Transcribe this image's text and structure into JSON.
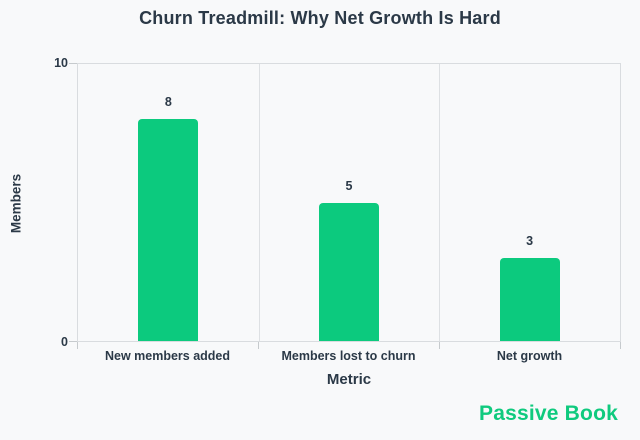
{
  "chart_data": {
    "type": "bar",
    "title": "Churn Treadmill: Why Net Growth Is Hard",
    "categories": [
      "New members added",
      "Members lost to churn",
      "Net growth"
    ],
    "values": [
      8,
      5,
      3
    ],
    "value_labels": [
      "8",
      "5",
      "3"
    ],
    "xlabel": "Metric",
    "ylabel": "Members",
    "ylim": [
      0,
      10
    ],
    "ytick_labels": [
      "10",
      "0"
    ],
    "bar_color": "#0cca7e",
    "grid": "vertical separators at category boundaries",
    "legend_position": "none"
  },
  "branding": {
    "logo_text": "Passive Book",
    "logo_color": "#0fca7e"
  },
  "colors": {
    "background": "#f8f9fa",
    "axis_line": "#d9dcdf",
    "text": "#2b3947",
    "accent_green": "#0cca7e"
  }
}
